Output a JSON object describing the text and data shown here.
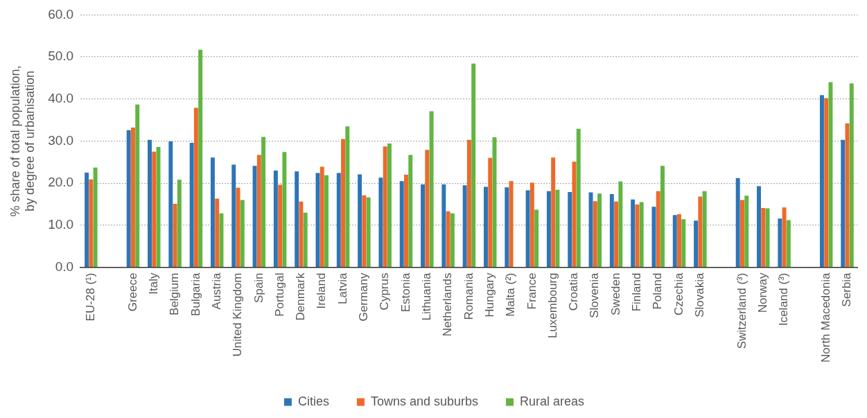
{
  "chart_data": {
    "type": "bar",
    "ylabel": "% share of total population, by degree of urbanisation",
    "categories": [
      "EU-28 (¹)",
      null,
      "Greece",
      "Italy",
      "Belgium",
      "Bulgaria",
      "Austria",
      "United Kingdom",
      "Spain",
      "Portugal",
      "Denmark",
      "Ireland",
      "Latvia",
      "Germany",
      "Cyprus",
      "Estonia",
      "Lithuania",
      "Netherlands",
      "Romania",
      "Hungary",
      "Malta (²)",
      "France",
      "Luxembourg",
      "Croatia",
      "Slovenia",
      "Sweden",
      "Finland",
      "Poland",
      "Czechia",
      "Slovakia",
      null,
      "Switzerland (³)",
      "Norway",
      "Iceland (³)",
      null,
      "North Macedonia",
      "Serbia"
    ],
    "series": [
      {
        "name": "Cities",
        "color": "#2e75b6",
        "values": [
          22.5,
          null,
          32.6,
          30.3,
          29.9,
          29.6,
          26.1,
          24.4,
          24.1,
          23.0,
          22.8,
          22.4,
          22.4,
          22.1,
          21.3,
          20.5,
          19.7,
          19.7,
          19.5,
          19.1,
          19.0,
          18.3,
          18.1,
          17.9,
          17.8,
          17.4,
          16.1,
          14.4,
          12.4,
          11.1,
          null,
          21.2,
          19.3,
          11.6,
          null,
          40.9,
          30.3
        ]
      },
      {
        "name": "Towns and suburbs",
        "color": "#ed6a2a",
        "values": [
          20.9,
          null,
          33.2,
          27.5,
          15.1,
          37.9,
          16.3,
          18.9,
          26.7,
          19.6,
          15.6,
          23.9,
          30.5,
          17.1,
          28.7,
          22.0,
          27.9,
          13.3,
          30.3,
          26.0,
          20.5,
          20.1,
          26.1,
          25.1,
          15.7,
          15.6,
          14.9,
          18.1,
          12.6,
          16.8,
          null,
          16.0,
          14.1,
          14.2,
          null,
          40.2,
          34.2
        ]
      },
      {
        "name": "Rural areas",
        "color": "#62b543",
        "values": [
          23.7,
          null,
          38.7,
          28.6,
          20.8,
          51.7,
          12.8,
          16.0,
          31.0,
          27.4,
          13.0,
          21.9,
          33.5,
          16.6,
          29.4,
          26.7,
          37.1,
          12.8,
          48.4,
          30.9,
          null,
          13.7,
          18.4,
          32.9,
          17.5,
          20.4,
          15.5,
          24.1,
          11.4,
          18.1,
          null,
          17.0,
          14.0,
          11.2,
          null,
          44.0,
          43.7
        ]
      }
    ],
    "ylim": [
      0,
      60
    ],
    "yticks": [
      {
        "value": 0,
        "label": "0.0"
      },
      {
        "value": 10,
        "label": "10.0"
      },
      {
        "value": 20,
        "label": "20.0"
      },
      {
        "value": 30,
        "label": "30.0"
      },
      {
        "value": 40,
        "label": "40.0"
      },
      {
        "value": 50,
        "label": "50.0"
      },
      {
        "value": 60,
        "label": "60.0"
      }
    ],
    "grid": "y",
    "legend": "bottom"
  }
}
